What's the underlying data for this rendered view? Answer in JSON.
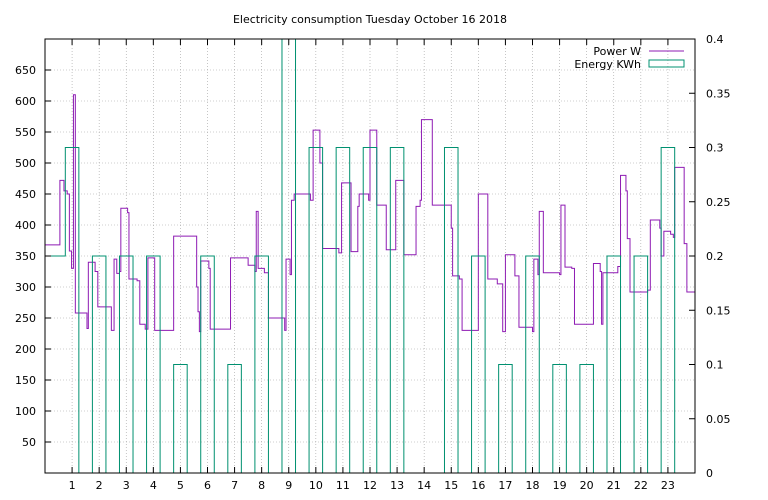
{
  "chart_data": {
    "type": "line",
    "title": "Electricity consumption Tuesday October 16 2018",
    "x_ticks": [
      1,
      2,
      3,
      4,
      5,
      6,
      7,
      8,
      9,
      10,
      11,
      12,
      13,
      14,
      15,
      16,
      17,
      18,
      19,
      20,
      21,
      22,
      23
    ],
    "xlim": [
      0,
      24
    ],
    "y_ticks": [
      50,
      100,
      150,
      200,
      250,
      300,
      350,
      400,
      450,
      500,
      550,
      600,
      650
    ],
    "ylim": [
      0,
      700
    ],
    "y2_ticks": [
      "0",
      "0.05",
      "0.1",
      "0.15",
      "0.2",
      "0.25",
      "0.3",
      "0.35",
      "0.4"
    ],
    "y2lim": [
      0,
      0.4
    ],
    "grid": true,
    "legend_position": "top-right",
    "series": [
      {
        "name": "Power W",
        "axis": "y1",
        "style": "steps",
        "color": "#8e1bb3",
        "points": [
          [
            0.0,
            368
          ],
          [
            0.5,
            368
          ],
          [
            0.55,
            472
          ],
          [
            0.7,
            455
          ],
          [
            0.82,
            450
          ],
          [
            0.9,
            358
          ],
          [
            0.98,
            330
          ],
          [
            1.05,
            610
          ],
          [
            1.12,
            258
          ],
          [
            1.4,
            258
          ],
          [
            1.55,
            233
          ],
          [
            1.6,
            340
          ],
          [
            1.85,
            325
          ],
          [
            1.95,
            268
          ],
          [
            2.4,
            268
          ],
          [
            2.45,
            230
          ],
          [
            2.55,
            345
          ],
          [
            2.65,
            322
          ],
          [
            2.75,
            325
          ],
          [
            2.8,
            427
          ],
          [
            3.05,
            420
          ],
          [
            3.1,
            313
          ],
          [
            3.4,
            310
          ],
          [
            3.5,
            240
          ],
          [
            3.7,
            232
          ],
          [
            3.8,
            347
          ],
          [
            4.05,
            230
          ],
          [
            4.7,
            230
          ],
          [
            4.75,
            382
          ],
          [
            5.55,
            382
          ],
          [
            5.6,
            300
          ],
          [
            5.65,
            260
          ],
          [
            5.7,
            228
          ],
          [
            5.75,
            342
          ],
          [
            6.05,
            330
          ],
          [
            6.1,
            232
          ],
          [
            6.8,
            232
          ],
          [
            6.85,
            347
          ],
          [
            7.5,
            335
          ],
          [
            7.75,
            325
          ],
          [
            7.8,
            422
          ],
          [
            7.87,
            330
          ],
          [
            8.1,
            323
          ],
          [
            8.25,
            250
          ],
          [
            8.85,
            230
          ],
          [
            8.9,
            345
          ],
          [
            9.05,
            320
          ],
          [
            9.1,
            440
          ],
          [
            9.2,
            450
          ],
          [
            9.8,
            440
          ],
          [
            9.9,
            553
          ],
          [
            10.15,
            500
          ],
          [
            10.25,
            362
          ],
          [
            10.85,
            355
          ],
          [
            10.95,
            468
          ],
          [
            11.3,
            357
          ],
          [
            11.55,
            430
          ],
          [
            11.6,
            450
          ],
          [
            11.95,
            440
          ],
          [
            12.0,
            553
          ],
          [
            12.25,
            432
          ],
          [
            12.6,
            360
          ],
          [
            12.95,
            472
          ],
          [
            13.25,
            352
          ],
          [
            13.7,
            430
          ],
          [
            13.85,
            440
          ],
          [
            13.9,
            570
          ],
          [
            14.3,
            432
          ],
          [
            15.0,
            395
          ],
          [
            15.05,
            318
          ],
          [
            15.3,
            313
          ],
          [
            15.4,
            230
          ],
          [
            15.95,
            230
          ],
          [
            16.0,
            450
          ],
          [
            16.35,
            313
          ],
          [
            16.6,
            313
          ],
          [
            16.7,
            305
          ],
          [
            16.9,
            228
          ],
          [
            17.0,
            352
          ],
          [
            17.35,
            318
          ],
          [
            17.5,
            235
          ],
          [
            18.0,
            228
          ],
          [
            18.05,
            345
          ],
          [
            18.2,
            320
          ],
          [
            18.25,
            422
          ],
          [
            18.4,
            323
          ],
          [
            19.0,
            320
          ],
          [
            19.05,
            432
          ],
          [
            19.2,
            332
          ],
          [
            19.45,
            330
          ],
          [
            19.55,
            240
          ],
          [
            20.2,
            240
          ],
          [
            20.25,
            338
          ],
          [
            20.5,
            325
          ],
          [
            20.55,
            240
          ],
          [
            20.6,
            323
          ],
          [
            21.1,
            323
          ],
          [
            21.15,
            333
          ],
          [
            21.25,
            480
          ],
          [
            21.45,
            455
          ],
          [
            21.5,
            378
          ],
          [
            21.6,
            292
          ],
          [
            22.1,
            292
          ],
          [
            22.25,
            295
          ],
          [
            22.35,
            408
          ],
          [
            22.7,
            395
          ],
          [
            22.75,
            350
          ],
          [
            22.85,
            390
          ],
          [
            23.1,
            385
          ],
          [
            23.2,
            380
          ],
          [
            23.25,
            493
          ],
          [
            23.6,
            370
          ],
          [
            23.7,
            292
          ],
          [
            24.0,
            292
          ]
        ]
      },
      {
        "name": "Energy KWh",
        "axis": "y2",
        "style": "steps",
        "color": "#009070",
        "points": [
          [
            0.0,
            0.2
          ],
          [
            0.75,
            0.3
          ],
          [
            1.25,
            0.0
          ],
          [
            1.75,
            0.2
          ],
          [
            2.25,
            0.0
          ],
          [
            2.75,
            0.2
          ],
          [
            3.25,
            0.0
          ],
          [
            3.75,
            0.2
          ],
          [
            4.25,
            0.0
          ],
          [
            4.75,
            0.1
          ],
          [
            5.25,
            0.0
          ],
          [
            5.75,
            0.2
          ],
          [
            6.25,
            0.0
          ],
          [
            6.75,
            0.1
          ],
          [
            7.25,
            0.0
          ],
          [
            7.75,
            0.2
          ],
          [
            8.25,
            0.0
          ],
          [
            8.75,
            0.4
          ],
          [
            9.25,
            0.0
          ],
          [
            9.75,
            0.3
          ],
          [
            10.25,
            0.0
          ],
          [
            10.75,
            0.3
          ],
          [
            11.25,
            0.0
          ],
          [
            11.75,
            0.3
          ],
          [
            12.25,
            0.0
          ],
          [
            12.75,
            0.3
          ],
          [
            13.25,
            0.0
          ],
          [
            14.75,
            0.3
          ],
          [
            15.25,
            0.0
          ],
          [
            15.75,
            0.2
          ],
          [
            16.25,
            0.0
          ],
          [
            16.75,
            0.1
          ],
          [
            17.25,
            0.0
          ],
          [
            17.75,
            0.2
          ],
          [
            18.25,
            0.0
          ],
          [
            18.75,
            0.1
          ],
          [
            19.25,
            0.0
          ],
          [
            19.75,
            0.1
          ],
          [
            20.25,
            0.0
          ],
          [
            20.75,
            0.2
          ],
          [
            21.25,
            0.0
          ],
          [
            21.75,
            0.2
          ],
          [
            22.25,
            0.0
          ],
          [
            22.75,
            0.3
          ],
          [
            23.25,
            0.0
          ],
          [
            24.0,
            0.0
          ]
        ]
      }
    ]
  }
}
